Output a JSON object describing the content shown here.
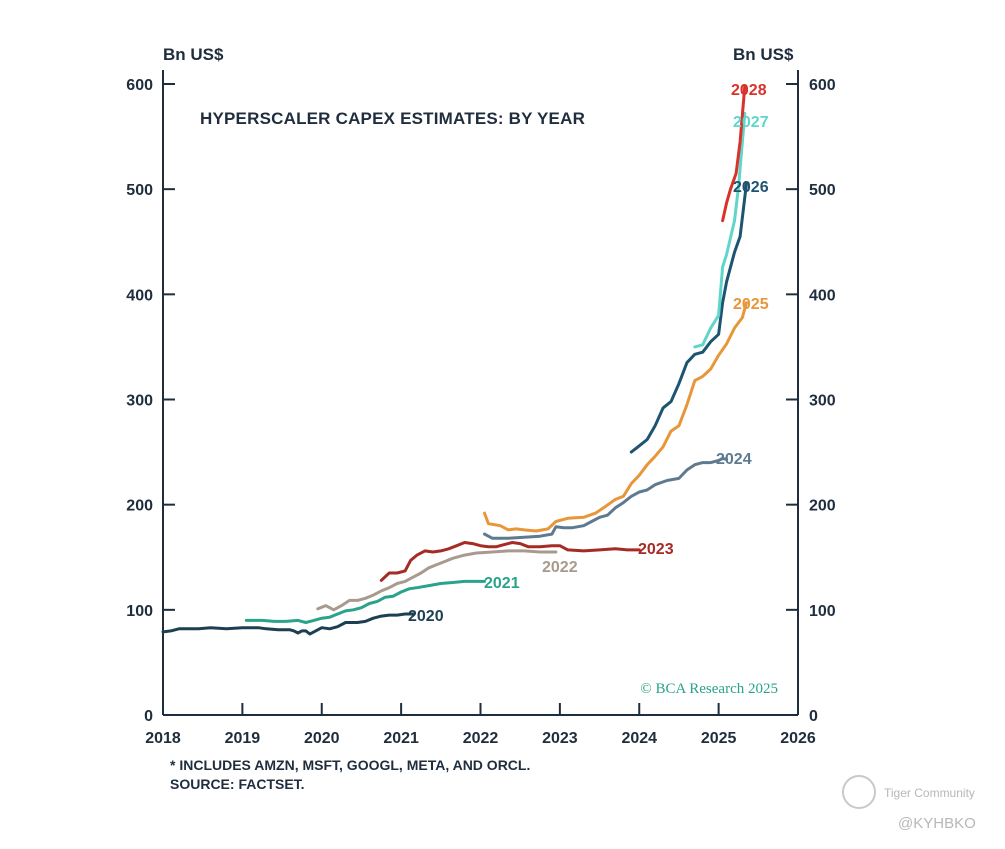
{
  "chart_data": {
    "type": "line",
    "title": "HYPERSCALER CAPEX ESTIMATES: BY YEAR",
    "ylabel_left": "Bn US$",
    "ylabel_right": "Bn US$",
    "xlim": [
      2018,
      2026
    ],
    "ylim": [
      0,
      600
    ],
    "x_ticks": [
      2018,
      2019,
      2020,
      2021,
      2022,
      2023,
      2024,
      2025,
      2026
    ],
    "y_ticks": [
      0,
      100,
      200,
      300,
      400,
      500,
      600
    ],
    "grid": false,
    "series": [
      {
        "name": "2020",
        "color": "#1d3f52",
        "points": [
          [
            2018.0,
            79
          ],
          [
            2018.1,
            80
          ],
          [
            2018.2,
            82
          ],
          [
            2018.3,
            82
          ],
          [
            2018.45,
            82
          ],
          [
            2018.6,
            83
          ],
          [
            2018.8,
            82
          ],
          [
            2019.0,
            83
          ],
          [
            2019.2,
            83
          ],
          [
            2019.3,
            82
          ],
          [
            2019.45,
            81
          ],
          [
            2019.6,
            81
          ],
          [
            2019.65,
            80
          ],
          [
            2019.7,
            78
          ],
          [
            2019.75,
            80
          ],
          [
            2019.8,
            80
          ],
          [
            2019.85,
            77
          ],
          [
            2019.9,
            79
          ],
          [
            2020.0,
            83
          ],
          [
            2020.1,
            82
          ],
          [
            2020.2,
            84
          ],
          [
            2020.3,
            88
          ],
          [
            2020.45,
            88
          ],
          [
            2020.55,
            89
          ],
          [
            2020.65,
            92
          ],
          [
            2020.75,
            94
          ],
          [
            2020.85,
            95
          ],
          [
            2020.95,
            95
          ],
          [
            2021.05,
            96
          ],
          [
            2021.15,
            96
          ]
        ]
      },
      {
        "name": "2021",
        "color": "#2aa38a",
        "points": [
          [
            2019.05,
            90
          ],
          [
            2019.25,
            90
          ],
          [
            2019.4,
            89
          ],
          [
            2019.55,
            89
          ],
          [
            2019.7,
            90
          ],
          [
            2019.8,
            88
          ],
          [
            2019.9,
            90
          ],
          [
            2020.0,
            92
          ],
          [
            2020.1,
            93
          ],
          [
            2020.2,
            96
          ],
          [
            2020.3,
            99
          ],
          [
            2020.4,
            100
          ],
          [
            2020.5,
            102
          ],
          [
            2020.6,
            106
          ],
          [
            2020.7,
            108
          ],
          [
            2020.8,
            112
          ],
          [
            2020.9,
            113
          ],
          [
            2021.0,
            117
          ],
          [
            2021.1,
            120
          ],
          [
            2021.2,
            121
          ],
          [
            2021.35,
            123
          ],
          [
            2021.5,
            125
          ],
          [
            2021.65,
            126
          ],
          [
            2021.8,
            127
          ],
          [
            2022.05,
            127
          ]
        ]
      },
      {
        "name": "2022",
        "color": "#a89a8c",
        "points": [
          [
            2019.95,
            101
          ],
          [
            2020.05,
            104
          ],
          [
            2020.15,
            100
          ],
          [
            2020.25,
            104
          ],
          [
            2020.35,
            109
          ],
          [
            2020.45,
            109
          ],
          [
            2020.55,
            111
          ],
          [
            2020.65,
            114
          ],
          [
            2020.75,
            118
          ],
          [
            2020.85,
            121
          ],
          [
            2020.95,
            125
          ],
          [
            2021.05,
            127
          ],
          [
            2021.15,
            131
          ],
          [
            2021.25,
            135
          ],
          [
            2021.35,
            140
          ],
          [
            2021.45,
            143
          ],
          [
            2021.55,
            146
          ],
          [
            2021.65,
            149
          ],
          [
            2021.8,
            152
          ],
          [
            2021.95,
            154
          ],
          [
            2022.15,
            155
          ],
          [
            2022.35,
            156
          ],
          [
            2022.55,
            156
          ],
          [
            2022.75,
            155
          ],
          [
            2022.95,
            155
          ]
        ]
      },
      {
        "name": "2023",
        "color": "#a52b24",
        "points": [
          [
            2020.75,
            128
          ],
          [
            2020.85,
            135
          ],
          [
            2020.95,
            135
          ],
          [
            2021.05,
            137
          ],
          [
            2021.12,
            147
          ],
          [
            2021.2,
            152
          ],
          [
            2021.3,
            156
          ],
          [
            2021.4,
            155
          ],
          [
            2021.5,
            156
          ],
          [
            2021.6,
            158
          ],
          [
            2021.7,
            161
          ],
          [
            2021.8,
            164
          ],
          [
            2021.9,
            163
          ],
          [
            2022.0,
            161
          ],
          [
            2022.1,
            160
          ],
          [
            2022.2,
            160
          ],
          [
            2022.3,
            162
          ],
          [
            2022.4,
            164
          ],
          [
            2022.5,
            163
          ],
          [
            2022.6,
            160
          ],
          [
            2022.75,
            160
          ],
          [
            2022.9,
            161
          ],
          [
            2023.0,
            161
          ],
          [
            2023.1,
            157
          ],
          [
            2023.3,
            156
          ],
          [
            2023.5,
            157
          ],
          [
            2023.7,
            158
          ],
          [
            2023.85,
            157
          ],
          [
            2024.0,
            157
          ]
        ]
      },
      {
        "name": "2024",
        "color": "#5e7a91",
        "points": [
          [
            2022.05,
            172
          ],
          [
            2022.15,
            168
          ],
          [
            2022.35,
            168
          ],
          [
            2022.55,
            169
          ],
          [
            2022.75,
            170
          ],
          [
            2022.9,
            172
          ],
          [
            2022.95,
            179
          ],
          [
            2023.05,
            178
          ],
          [
            2023.15,
            178
          ],
          [
            2023.3,
            180
          ],
          [
            2023.4,
            184
          ],
          [
            2023.5,
            188
          ],
          [
            2023.6,
            190
          ],
          [
            2023.7,
            197
          ],
          [
            2023.8,
            202
          ],
          [
            2023.9,
            208
          ],
          [
            2024.0,
            212
          ],
          [
            2024.1,
            214
          ],
          [
            2024.2,
            219
          ],
          [
            2024.35,
            223
          ],
          [
            2024.5,
            225
          ],
          [
            2024.6,
            233
          ],
          [
            2024.7,
            238
          ],
          [
            2024.8,
            240
          ],
          [
            2024.9,
            240
          ],
          [
            2025.0,
            242
          ],
          [
            2025.05,
            244
          ],
          [
            2025.1,
            243
          ]
        ]
      },
      {
        "name": "2025",
        "color": "#e8963a",
        "points": [
          [
            2022.05,
            192
          ],
          [
            2022.1,
            182
          ],
          [
            2022.25,
            180
          ],
          [
            2022.35,
            176
          ],
          [
            2022.45,
            177
          ],
          [
            2022.55,
            176
          ],
          [
            2022.7,
            175
          ],
          [
            2022.85,
            177
          ],
          [
            2022.95,
            184
          ],
          [
            2023.1,
            187
          ],
          [
            2023.3,
            188
          ],
          [
            2023.45,
            192
          ],
          [
            2023.55,
            197
          ],
          [
            2023.7,
            205
          ],
          [
            2023.8,
            208
          ],
          [
            2023.9,
            220
          ],
          [
            2024.0,
            228
          ],
          [
            2024.1,
            238
          ],
          [
            2024.2,
            246
          ],
          [
            2024.3,
            255
          ],
          [
            2024.4,
            270
          ],
          [
            2024.5,
            275
          ],
          [
            2024.6,
            295
          ],
          [
            2024.7,
            318
          ],
          [
            2024.8,
            322
          ],
          [
            2024.9,
            329
          ],
          [
            2025.0,
            342
          ],
          [
            2025.1,
            353
          ],
          [
            2025.2,
            368
          ],
          [
            2025.3,
            378
          ],
          [
            2025.35,
            392
          ]
        ]
      },
      {
        "name": "2026",
        "color": "#1d5470",
        "points": [
          [
            2023.9,
            250
          ],
          [
            2024.0,
            256
          ],
          [
            2024.1,
            262
          ],
          [
            2024.2,
            275
          ],
          [
            2024.3,
            292
          ],
          [
            2024.4,
            298
          ],
          [
            2024.5,
            315
          ],
          [
            2024.6,
            335
          ],
          [
            2024.7,
            343
          ],
          [
            2024.8,
            345
          ],
          [
            2024.9,
            355
          ],
          [
            2025.0,
            362
          ],
          [
            2025.05,
            392
          ],
          [
            2025.1,
            412
          ],
          [
            2025.2,
            440
          ],
          [
            2025.27,
            455
          ],
          [
            2025.35,
            505
          ]
        ]
      },
      {
        "name": "2027",
        "color": "#5fd6c9",
        "points": [
          [
            2024.7,
            350
          ],
          [
            2024.8,
            352
          ],
          [
            2024.9,
            368
          ],
          [
            2025.0,
            380
          ],
          [
            2025.05,
            426
          ],
          [
            2025.1,
            438
          ],
          [
            2025.2,
            470
          ],
          [
            2025.25,
            502
          ],
          [
            2025.33,
            572
          ]
        ]
      },
      {
        "name": "2028",
        "color": "#d9322b",
        "points": [
          [
            2025.05,
            470
          ],
          [
            2025.1,
            487
          ],
          [
            2025.15,
            500
          ],
          [
            2025.22,
            515
          ],
          [
            2025.27,
            545
          ],
          [
            2025.33,
            598
          ]
        ]
      }
    ]
  },
  "labels": {
    "s2020": "2020",
    "s2021": "2021",
    "s2022": "2022",
    "s2023": "2023",
    "s2024": "2024",
    "s2025": "2025",
    "s2026": "2026",
    "s2027": "2027",
    "s2028": "2028"
  },
  "credit": "© BCA Research 2025",
  "footnote": "* INCLUDES AMZN, MSFT, GOOGL, META, AND ORCL.",
  "source": "SOURCE: FACTSET.",
  "watermark": {
    "community": "Tiger Community",
    "handle": "@KYHBKO"
  }
}
